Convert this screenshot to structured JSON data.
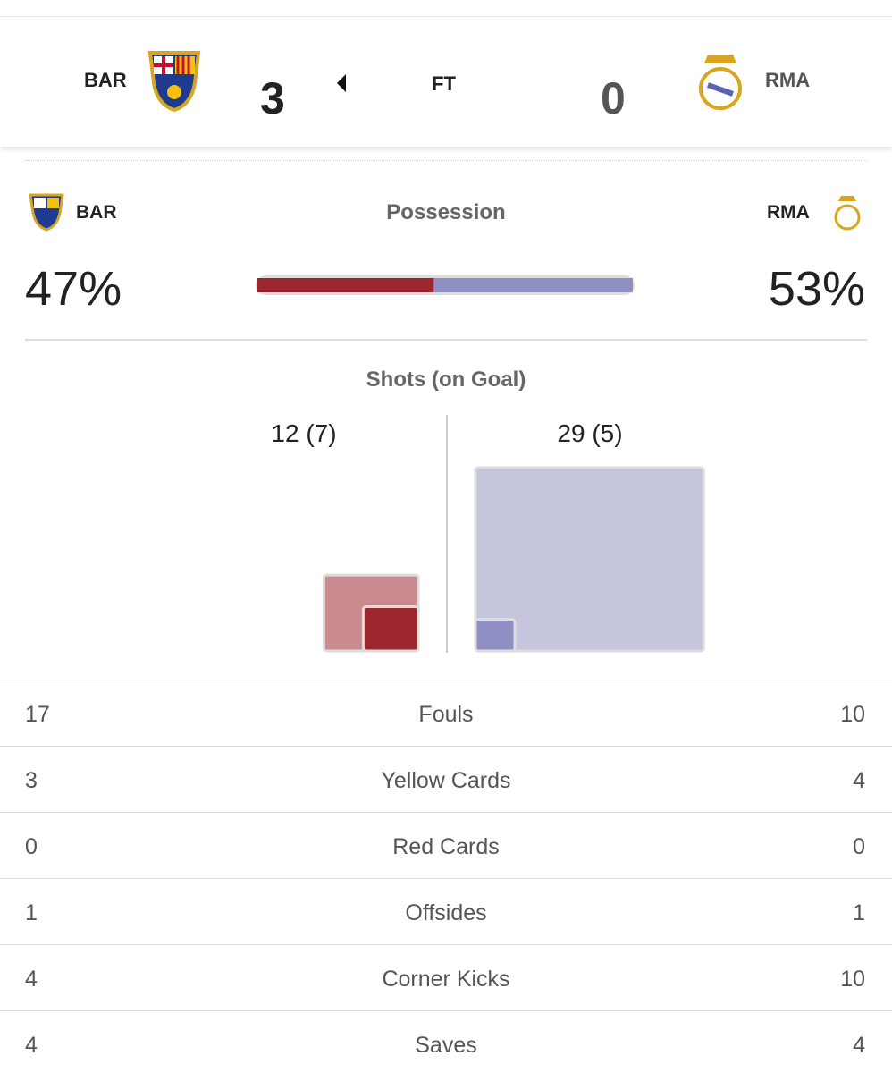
{
  "header": {
    "home": "BAR",
    "home_score": "3",
    "status": "FT",
    "away_score": "0",
    "away": "RMA"
  },
  "possession": {
    "home": "BAR",
    "title": "Possession",
    "away": "RMA",
    "values": [
      47,
      53
    ],
    "value_labels": [
      "47%",
      "53%"
    ]
  },
  "shots": {
    "title": "Shots (on Goal)",
    "values": [
      12,
      29
    ],
    "on_goal": [
      7,
      5
    ],
    "value_labels": [
      "12 (7)",
      "29 (5)"
    ]
  },
  "table": {
    "rows": [
      {
        "home": "17",
        "label": "Fouls",
        "away": "10"
      },
      {
        "home": "3",
        "label": "Yellow Cards",
        "away": "4"
      },
      {
        "home": "0",
        "label": "Red Cards",
        "away": "0"
      },
      {
        "home": "1",
        "label": "Offsides",
        "away": "1"
      },
      {
        "home": "4",
        "label": "Corner Kicks",
        "away": "10"
      },
      {
        "home": "4",
        "label": "Saves",
        "away": "4"
      }
    ]
  }
}
